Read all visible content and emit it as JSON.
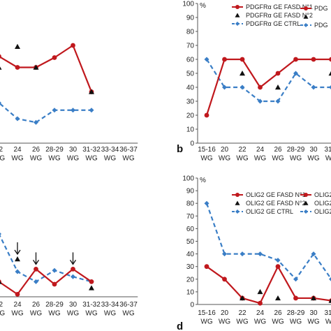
{
  "colors": {
    "fasd": "#c0181d",
    "ctrl": "#3a7ec6",
    "marker2": "#111111",
    "axis": "#555555"
  },
  "panels": [
    {
      "id": "a",
      "letter": "",
      "unit": "",
      "categories": [
        "20\nWG",
        "22\nWG",
        "24\nWG",
        "26\nWG",
        "28-29\nWG",
        "30\nWG",
        "31-32\nWG",
        "33-34\nWG",
        "36-37\nWG"
      ],
      "ylim": [
        0,
        100
      ],
      "yticks": [],
      "legend": [
        "PDGFRα GE FASD N°1",
        "PDGFRα GE FASD N°2",
        "PDGFRα GE CTRL"
      ],
      "arrows": []
    },
    {
      "id": "b",
      "letter": "b",
      "unit": "%",
      "categories": [
        "15-16\nWG",
        "20\nWG",
        "22\nWG",
        "24\nWG",
        "26\nWG",
        "28-29\nWG",
        "30\nWG",
        "31-3\nWG"
      ],
      "ylim": [
        0,
        100
      ],
      "yticks": [
        0,
        10,
        20,
        30,
        40,
        50,
        60,
        70,
        80,
        90,
        100
      ],
      "legend": [
        "PDG",
        "",
        "PDG"
      ],
      "arrows": []
    },
    {
      "id": "c",
      "letter": "",
      "unit": "",
      "categories": [
        "20\nWG",
        "22\nWG",
        "24\nWG",
        "26\nWG",
        "28-29\nWG",
        "30\nWG",
        "31-32\nWG",
        "33-34\nWG",
        "36-37\nWG"
      ],
      "ylim": [
        0,
        100
      ],
      "yticks": [],
      "legend": [
        "OLIG2 GE FASD N°1",
        "OLIG2 GE FASD N°2",
        "OLIG2 GE CTRL"
      ],
      "arrows": [
        2,
        3,
        5
      ]
    },
    {
      "id": "d",
      "letter": "d",
      "unit": "%",
      "categories": [
        "15-16\nWG",
        "20\nWG",
        "22\nWG",
        "24\nWG",
        "26\nWG",
        "28-29\nWG",
        "30\nWG",
        "31-3\nWG"
      ],
      "ylim": [
        0,
        100
      ],
      "yticks": [
        0,
        10,
        20,
        30,
        40,
        50,
        60,
        70,
        80,
        90,
        100
      ],
      "legend": [
        "OLIG2",
        "OLIG2",
        "OLIG2"
      ],
      "arrows": []
    }
  ],
  "chart_data": [
    {
      "type": "line",
      "panel": "a",
      "categories": [
        "20 WG",
        "22 WG",
        "24 WG",
        "26 WG",
        "28-29 WG",
        "30 WG",
        "31-32 WG",
        "33-34 WG",
        "36-37 WG"
      ],
      "ylim": [
        0,
        100
      ],
      "series": [
        {
          "name": "PDGFRα GE FASD N°1",
          "values": [
            80,
            71,
            62,
            62,
            70,
            80,
            42,
            null,
            null
          ]
        },
        {
          "name": "PDGFRα GE FASD N°2",
          "values": [
            null,
            62,
            79,
            62,
            null,
            null,
            42,
            null,
            null
          ]
        },
        {
          "name": "PDGFRα GE CTRL",
          "values": [
            28,
            33,
            20,
            17,
            27,
            27,
            27,
            null,
            null
          ]
        }
      ]
    },
    {
      "type": "line",
      "panel": "b",
      "categories": [
        "15-16 WG",
        "20 WG",
        "22 WG",
        "24 WG",
        "26 WG",
        "28-29 WG",
        "30 WG",
        "31-3 WG"
      ],
      "ylim": [
        0,
        100
      ],
      "series": [
        {
          "name": "PDG",
          "values": [
            20,
            60,
            60,
            40,
            50,
            60,
            60,
            60
          ]
        },
        {
          "name": "",
          "values": [
            null,
            null,
            50,
            null,
            40,
            null,
            null,
            50
          ]
        },
        {
          "name": "PDG",
          "values": [
            60,
            40,
            40,
            30,
            30,
            50,
            40,
            40
          ]
        }
      ]
    },
    {
      "type": "line",
      "panel": "c",
      "categories": [
        "20 WG",
        "22 WG",
        "24 WG",
        "26 WG",
        "28-29 WG",
        "30 WG",
        "31-32 WG",
        "33-34 WG",
        "36-37 WG"
      ],
      "ylim": [
        0,
        100
      ],
      "series": [
        {
          "name": "OLIG2 GE FASD N°1",
          "values": [
            30,
            12,
            2,
            22,
            10,
            22,
            12,
            null,
            null
          ]
        },
        {
          "name": "OLIG2 GE FASD N°2",
          "values": [
            null,
            12,
            30,
            null,
            null,
            null,
            7,
            null,
            null
          ]
        },
        {
          "name": "OLIG2 GE CTRL",
          "values": [
            41,
            50,
            20,
            12,
            21,
            16,
            12,
            null,
            null
          ]
        }
      ]
    },
    {
      "type": "line",
      "panel": "d",
      "categories": [
        "15-16 WG",
        "20 WG",
        "22 WG",
        "24 WG",
        "26 WG",
        "28-29 WG",
        "30 WG",
        "31-3 WG"
      ],
      "ylim": [
        0,
        100
      ],
      "series": [
        {
          "name": "OLIG2",
          "values": [
            30,
            20,
            5,
            1,
            30,
            5,
            5,
            3
          ]
        },
        {
          "name": "OLIG2",
          "values": [
            null,
            null,
            5,
            10,
            5,
            null,
            5,
            3
          ]
        },
        {
          "name": "OLIG2",
          "values": [
            80,
            40,
            40,
            40,
            35,
            20,
            40,
            20
          ]
        }
      ]
    }
  ]
}
